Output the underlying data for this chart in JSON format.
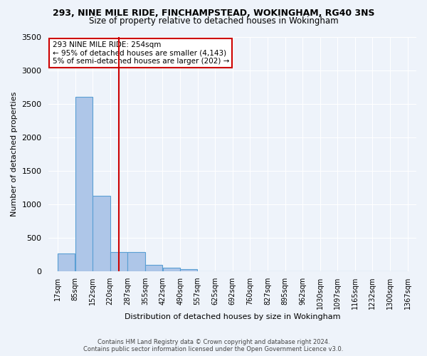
{
  "title": "293, NINE MILE RIDE, FINCHAMPSTEAD, WOKINGHAM, RG40 3NS",
  "subtitle": "Size of property relative to detached houses in Wokingham",
  "xlabel": "Distribution of detached houses by size in Wokingham",
  "ylabel": "Number of detached properties",
  "footer_line1": "Contains HM Land Registry data © Crown copyright and database right 2024.",
  "footer_line2": "Contains public sector information licensed under the Open Government Licence v3.0.",
  "annotation_line1": "293 NINE MILE RIDE: 254sqm",
  "annotation_line2": "← 95% of detached houses are smaller (4,143)",
  "annotation_line3": "5% of semi-detached houses are larger (202) →",
  "categories": [
    "17sqm",
    "85sqm",
    "152sqm",
    "220sqm",
    "287sqm",
    "355sqm",
    "422sqm",
    "490sqm",
    "557sqm",
    "625sqm",
    "692sqm",
    "760sqm",
    "827sqm",
    "895sqm",
    "962sqm",
    "1030sqm",
    "1097sqm",
    "1165sqm",
    "1232sqm",
    "1300sqm",
    "1367sqm"
  ],
  "bin_edges": [
    17,
    85,
    152,
    220,
    287,
    355,
    422,
    490,
    557,
    625,
    692,
    760,
    827,
    895,
    962,
    1030,
    1097,
    1165,
    1232,
    1300,
    1367
  ],
  "values": [
    270,
    2600,
    1130,
    290,
    290,
    100,
    60,
    40,
    0,
    0,
    0,
    0,
    0,
    0,
    0,
    0,
    0,
    0,
    0,
    0,
    0
  ],
  "bar_color": "#aec6e8",
  "bar_edge_color": "#5a9fd4",
  "vline_color": "#cc0000",
  "vline_x": 254,
  "annotation_box_color": "#cc0000",
  "ylim": [
    0,
    3500
  ],
  "background_color": "#eef3fa",
  "grid_color": "#ffffff",
  "title_fontsize": 9,
  "subtitle_fontsize": 8.5,
  "ylabel_fontsize": 8,
  "xlabel_fontsize": 8,
  "tick_fontsize": 7,
  "footer_fontsize": 6,
  "ann_fontsize": 7.5
}
